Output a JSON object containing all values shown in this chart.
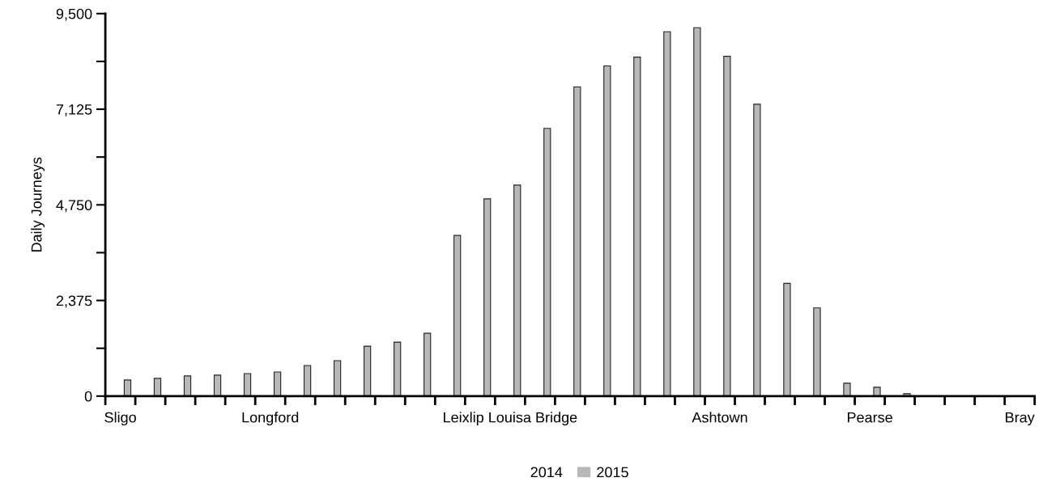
{
  "chart_data": {
    "type": "bar",
    "ylabel": "Daily Journeys",
    "categories": [
      "Sligo",
      null,
      null,
      null,
      null,
      "Longford",
      null,
      null,
      null,
      null,
      null,
      null,
      null,
      "Leixlip Louisa Bridge",
      null,
      null,
      null,
      null,
      null,
      null,
      "Ashtown",
      null,
      null,
      null,
      null,
      "Pearse",
      null,
      null,
      null,
      null,
      "Bray"
    ],
    "series": [
      {
        "name": "2014",
        "values": [
          null,
          null,
          null,
          null,
          null,
          null,
          null,
          null,
          null,
          null,
          null,
          null,
          null,
          null,
          null,
          null,
          null,
          null,
          null,
          null,
          null,
          null,
          null,
          null,
          null,
          null,
          null,
          null,
          null,
          null,
          null
        ]
      },
      {
        "name": "2015",
        "color": "#b8b8b8",
        "values": [
          400,
          440,
          500,
          520,
          560,
          600,
          760,
          880,
          1240,
          1340,
          1560,
          3990,
          4900,
          5240,
          6650,
          7680,
          8200,
          8420,
          9050,
          9150,
          8440,
          7250,
          2800,
          2190,
          320,
          220,
          60,
          null,
          null,
          0,
          0
        ]
      }
    ],
    "ylim": [
      0,
      9500
    ],
    "yticks": [
      {
        "value": 0,
        "label": "0"
      },
      {
        "value": 1187.5,
        "label": null
      },
      {
        "value": 2375,
        "label": "2,375"
      },
      {
        "value": 3562.5,
        "label": null
      },
      {
        "value": 4750,
        "label": "4,750"
      },
      {
        "value": 5937.5,
        "label": null
      },
      {
        "value": 7125,
        "label": "7,125"
      },
      {
        "value": 8312.5,
        "label": null
      },
      {
        "value": 9500,
        "label": "9,500"
      }
    ],
    "grid": false,
    "legend": "bottom"
  }
}
